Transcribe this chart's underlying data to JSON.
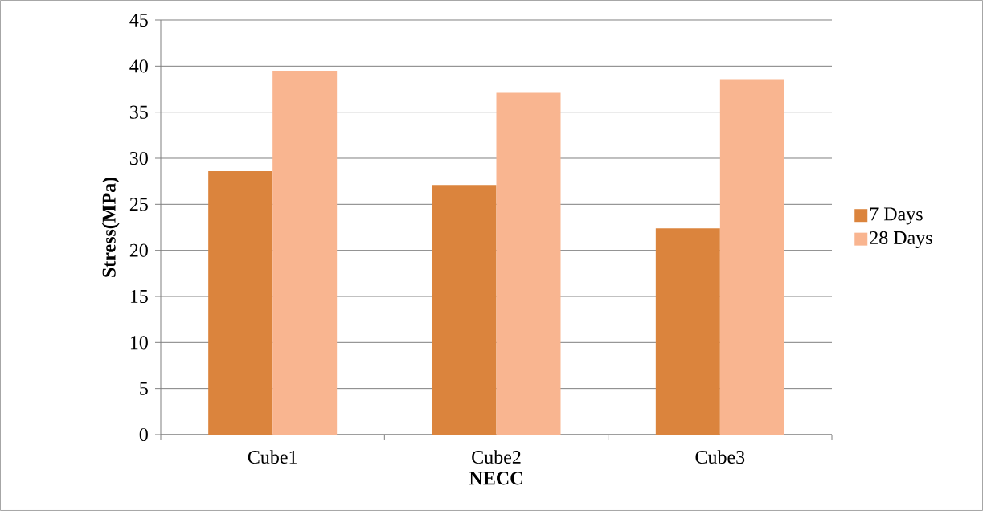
{
  "chart_data": {
    "type": "bar",
    "xlabel": "NECC",
    "ylabel": "Stress(MPa)",
    "categories": [
      "Cube1",
      "Cube2",
      "Cube3"
    ],
    "series": [
      {
        "name": "7 Days",
        "color": "#db843d",
        "values": [
          28.6,
          27.1,
          22.4
        ]
      },
      {
        "name": "28 Days",
        "color": "#f9b590",
        "values": [
          39.5,
          37.1,
          38.6
        ]
      }
    ],
    "ylim": [
      0,
      45
    ],
    "yticks": [
      0,
      5,
      10,
      15,
      20,
      25,
      30,
      35,
      40,
      45
    ],
    "grid": "y",
    "legend": "right"
  }
}
